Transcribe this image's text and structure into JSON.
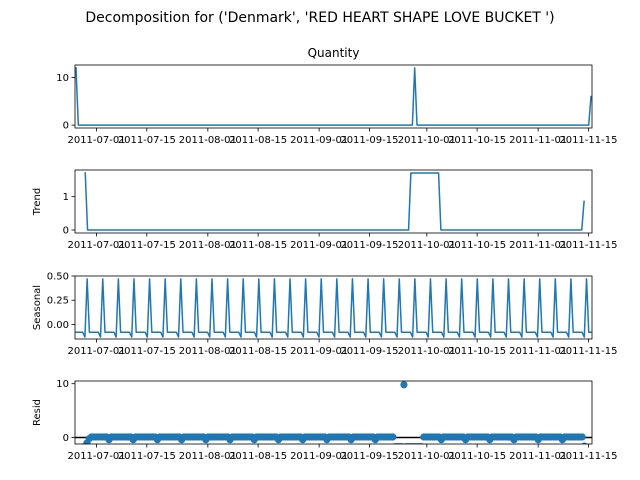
{
  "suptitle": "Decomposition for ('Denmark', 'RED HEART SHAPE LOVE BUCKET ')",
  "line_color": "#1f77b4",
  "chart_data": [
    {
      "type": "line",
      "title": "Quantity",
      "ylabel": "",
      "ylim": [
        -0.6,
        12.6
      ],
      "yticks": [
        0,
        10
      ],
      "xticks": [
        "2011-07-01",
        "2011-07-15",
        "2011-08-01",
        "2011-08-15",
        "2011-09-01",
        "2011-09-15",
        "2011-10-01",
        "2011-10-15",
        "2011-11-01",
        "2011-11-15"
      ],
      "values": [
        12,
        0,
        0,
        0,
        0,
        0,
        0,
        0,
        0,
        0,
        0,
        0,
        0,
        0,
        0,
        0,
        0,
        0,
        0,
        0,
        0,
        0,
        0,
        0,
        0,
        0,
        0,
        0,
        0,
        0,
        0,
        0,
        0,
        0,
        0,
        0,
        0,
        0,
        0,
        0,
        0,
        0,
        0,
        0,
        0,
        0,
        0,
        0,
        0,
        0,
        0,
        0,
        0,
        0,
        0,
        0,
        0,
        0,
        0,
        0,
        0,
        0,
        0,
        0,
        0,
        0,
        0,
        0,
        0,
        0,
        0,
        0,
        0,
        0,
        0,
        0,
        0,
        0,
        0,
        0,
        0,
        0,
        0,
        0,
        0,
        0,
        0,
        0,
        0,
        0,
        0,
        0,
        0,
        0,
        0,
        0,
        0,
        0,
        0,
        0,
        0,
        0,
        0,
        0,
        0,
        0,
        0,
        0,
        0,
        0,
        0,
        0,
        0,
        0,
        0,
        0,
        0,
        0,
        0,
        0,
        0,
        0,
        0,
        0,
        0,
        0,
        0,
        0,
        0,
        0,
        0,
        0,
        0,
        0,
        0,
        0,
        0,
        0,
        0,
        0,
        0,
        0,
        0,
        0,
        0,
        0,
        12,
        0,
        0,
        0,
        0,
        0,
        0,
        0,
        0,
        0,
        0,
        0,
        0,
        0,
        0,
        0,
        0,
        0,
        0,
        0,
        0,
        0,
        0,
        0,
        0,
        0,
        0,
        0,
        0,
        0,
        0,
        0,
        0,
        0,
        0,
        0,
        0,
        0,
        0,
        0,
        0,
        0,
        0,
        0,
        0,
        0,
        0,
        0,
        0,
        0,
        0,
        0,
        0,
        0,
        0,
        0,
        0,
        0,
        0,
        0,
        0,
        0,
        0,
        0,
        0,
        0,
        0,
        0,
        0,
        0,
        0,
        0,
        0,
        0,
        0,
        0,
        6
      ]
    },
    {
      "type": "line",
      "title": "",
      "ylabel": "Trend",
      "ylim": [
        -0.09,
        1.8
      ],
      "yticks": [
        0,
        1
      ],
      "xticks": [
        "2011-07-01",
        "2011-07-15",
        "2011-08-01",
        "2011-08-15",
        "2011-09-01",
        "2011-09-15",
        "2011-10-01",
        "2011-10-15",
        "2011-11-01",
        "2011-11-15"
      ],
      "values": [
        null,
        null,
        null,
        null,
        1.71,
        0,
        0,
        0,
        0,
        0,
        0,
        0,
        0,
        0,
        0,
        0,
        0,
        0,
        0,
        0,
        0,
        0,
        0,
        0,
        0,
        0,
        0,
        0,
        0,
        0,
        0,
        0,
        0,
        0,
        0,
        0,
        0,
        0,
        0,
        0,
        0,
        0,
        0,
        0,
        0,
        0,
        0,
        0,
        0,
        0,
        0,
        0,
        0,
        0,
        0,
        0,
        0,
        0,
        0,
        0,
        0,
        0,
        0,
        0,
        0,
        0,
        0,
        0,
        0,
        0,
        0,
        0,
        0,
        0,
        0,
        0,
        0,
        0,
        0,
        0,
        0,
        0,
        0,
        0,
        0,
        0,
        0,
        0,
        0,
        0,
        0,
        0,
        0,
        0,
        0,
        0,
        0,
        0,
        0,
        0,
        0,
        0,
        0,
        0,
        0,
        0,
        0,
        0,
        0,
        0,
        0,
        0,
        0,
        0,
        0,
        0,
        0,
        0,
        0,
        0,
        0,
        0,
        0,
        0,
        0,
        0,
        0,
        0,
        0,
        0,
        0,
        0,
        0,
        0,
        0,
        0,
        0,
        0,
        0,
        0,
        0,
        0,
        0,
        0,
        0,
        1.71,
        1.71,
        1.71,
        1.71,
        1.71,
        1.71,
        1.71,
        1.71,
        1.71,
        1.71,
        1.71,
        1.71,
        1.71,
        0,
        0,
        0,
        0,
        0,
        0,
        0,
        0,
        0,
        0,
        0,
        0,
        0,
        0,
        0,
        0,
        0,
        0,
        0,
        0,
        0,
        0,
        0,
        0,
        0,
        0,
        0,
        0,
        0,
        0,
        0,
        0,
        0,
        0,
        0,
        0,
        0,
        0,
        0,
        0,
        0,
        0,
        0,
        0,
        0,
        0,
        0,
        0,
        0,
        0,
        0,
        0,
        0,
        0,
        0,
        0,
        0,
        0,
        0,
        0,
        0,
        0,
        0.86,
        null,
        null,
        null
      ]
    },
    {
      "type": "line",
      "title": "",
      "ylabel": "Seasonal",
      "ylim": [
        -0.15,
        0.5
      ],
      "yticks": [
        -0.0,
        0.25,
        0.5
      ],
      "ytick_labels": [
        "0.00",
        "0.25",
        "0.50"
      ],
      "xticks": [
        "2011-07-01",
        "2011-07-15",
        "2011-08-01",
        "2011-08-15",
        "2011-09-01",
        "2011-09-15",
        "2011-10-01",
        "2011-10-15",
        "2011-11-01",
        "2011-11-15"
      ],
      "values": [
        -0.08,
        -0.08,
        -0.08,
        -0.08,
        -0.13,
        0.47,
        -0.08,
        -0.08,
        -0.08,
        -0.08,
        -0.08,
        -0.13,
        0.47,
        -0.08,
        -0.08,
        -0.08,
        -0.08,
        -0.08,
        -0.13,
        0.47,
        -0.08,
        -0.08,
        -0.08,
        -0.08,
        -0.08,
        -0.13,
        0.47,
        -0.08,
        -0.08,
        -0.08,
        -0.08,
        -0.08,
        -0.13,
        0.47,
        -0.08,
        -0.08,
        -0.08,
        -0.08,
        -0.08,
        -0.13,
        0.47,
        -0.08,
        -0.08,
        -0.08,
        -0.08,
        -0.08,
        -0.13,
        0.47,
        -0.08,
        -0.08,
        -0.08,
        -0.08,
        -0.08,
        -0.13,
        0.47,
        -0.08,
        -0.08,
        -0.08,
        -0.08,
        -0.08,
        -0.13,
        0.47,
        -0.08,
        -0.08,
        -0.08,
        -0.08,
        -0.08,
        -0.13,
        0.47,
        -0.08,
        -0.08,
        -0.08,
        -0.08,
        -0.08,
        -0.13,
        0.47,
        -0.08,
        -0.08,
        -0.08,
        -0.08,
        -0.08,
        -0.13,
        0.47,
        -0.08,
        -0.08,
        -0.08,
        -0.08,
        -0.08,
        -0.13,
        0.47,
        -0.08,
        -0.08,
        -0.08,
        -0.08,
        -0.08,
        -0.13,
        0.47,
        -0.08,
        -0.08,
        -0.08,
        -0.08,
        -0.08,
        -0.13,
        0.47,
        -0.08,
        -0.08,
        -0.08,
        -0.08,
        -0.08,
        -0.13,
        0.47,
        -0.08,
        -0.08,
        -0.08,
        -0.08,
        -0.08,
        -0.13,
        0.47,
        -0.08,
        -0.08,
        -0.08,
        -0.08,
        -0.08,
        -0.13,
        0.47,
        -0.08,
        -0.08,
        -0.08,
        -0.08,
        -0.08,
        -0.13,
        0.47,
        -0.08,
        -0.08,
        -0.08,
        -0.08,
        -0.08,
        -0.13,
        0.47,
        -0.08,
        -0.08,
        -0.08,
        -0.08,
        -0.08,
        -0.13,
        0.47,
        -0.08,
        -0.08,
        -0.08,
        -0.08,
        -0.08,
        -0.13,
        0.47,
        -0.08,
        -0.08,
        -0.08,
        -0.08,
        -0.08,
        -0.13,
        0.47,
        -0.08,
        -0.08,
        -0.08,
        -0.08,
        -0.08,
        -0.13,
        0.47,
        -0.08,
        -0.08,
        -0.08,
        -0.08,
        -0.08,
        -0.13,
        0.47,
        -0.08,
        -0.08,
        -0.08,
        -0.08,
        -0.08,
        -0.13,
        0.47,
        -0.08,
        -0.08,
        -0.08,
        -0.08,
        -0.08,
        -0.13,
        0.47,
        -0.08,
        -0.08,
        -0.08,
        -0.08,
        -0.08,
        -0.13,
        0.47,
        -0.08,
        -0.08,
        -0.08,
        -0.08,
        -0.08,
        -0.13,
        0.47,
        -0.08,
        -0.08,
        -0.08,
        -0.08,
        -0.08,
        -0.13,
        0.47,
        -0.08,
        -0.08,
        -0.08,
        -0.08,
        -0.08,
        -0.13,
        0.47,
        -0.08,
        -0.08,
        -0.08,
        -0.08,
        -0.08,
        -0.13,
        0.47,
        -0.08,
        -0.08,
        -0.08,
        -0.08,
        -0.08,
        -0.13,
        0.47,
        -0.08,
        -0.08
      ]
    },
    {
      "type": "scatter",
      "title": "",
      "ylabel": "Resid",
      "ylim": [
        -1.2,
        10.5
      ],
      "yticks": [
        0,
        10
      ],
      "baseline": 0,
      "xticks": [
        "2011-07-01",
        "2011-07-15",
        "2011-08-01",
        "2011-08-15",
        "2011-09-01",
        "2011-09-15",
        "2011-10-01",
        "2011-10-15",
        "2011-11-01",
        "2011-11-15"
      ],
      "values": [
        null,
        null,
        null,
        null,
        -1.6,
        -1.0,
        -0.2,
        0.1,
        0.1,
        0.1,
        0.1,
        0.1,
        0.1,
        0.1,
        0.1,
        -0.4,
        0.1,
        0.1,
        0.1,
        0.1,
        0.1,
        0.1,
        0.1,
        0.1,
        0.1,
        0.1,
        -0.4,
        0.1,
        0.1,
        0.1,
        0.1,
        0.1,
        0.1,
        0.1,
        0.1,
        0.1,
        0.1,
        -0.4,
        0.1,
        0.1,
        0.1,
        0.1,
        0.1,
        0.1,
        0.1,
        0.1,
        0.1,
        0.1,
        -0.4,
        0.1,
        0.1,
        0.1,
        0.1,
        0.1,
        0.1,
        0.1,
        0.1,
        0.1,
        0.1,
        -0.4,
        0.1,
        0.1,
        0.1,
        0.1,
        0.1,
        0.1,
        0.1,
        0.1,
        0.1,
        0.1,
        -0.4,
        0.1,
        0.1,
        0.1,
        0.1,
        0.1,
        0.1,
        0.1,
        0.1,
        0.1,
        0.1,
        -0.4,
        0.1,
        0.1,
        0.1,
        0.1,
        0.1,
        0.1,
        0.1,
        0.1,
        0.1,
        0.1,
        -0.4,
        0.1,
        0.1,
        0.1,
        0.1,
        0.1,
        0.1,
        0.1,
        0.1,
        0.1,
        0.1,
        -0.4,
        0.1,
        0.1,
        0.1,
        0.1,
        0.1,
        0.1,
        0.1,
        0.1,
        0.1,
        0.1,
        -0.4,
        0.1,
        0.1,
        0.1,
        0.1,
        0.1,
        0.1,
        0.1,
        0.1,
        0.1,
        0.1,
        -0.4,
        0.1,
        0.1,
        0.1,
        0.1,
        0.1,
        0.1,
        0.1,
        0.1,
        0.1,
        0.1,
        -0.4,
        0.1,
        0.1,
        0.1,
        0.1,
        0.1,
        0.1,
        0.1,
        0.1,
        -1.7,
        -1.7,
        -1.7,
        -1.7,
        9.8,
        -1.7,
        -1.7,
        -1.7,
        -1.7,
        -1.7,
        -1.7,
        -1.7,
        -1.7,
        0.1,
        0.1,
        0.1,
        0.1,
        0.1,
        0.1,
        0.1,
        0.1,
        -0.4,
        0.1,
        0.1,
        0.1,
        0.1,
        0.1,
        0.1,
        0.1,
        0.1,
        0.1,
        0.1,
        -0.4,
        0.1,
        0.1,
        0.1,
        0.1,
        0.1,
        0.1,
        0.1,
        0.1,
        0.1,
        0.1,
        -0.4,
        0.1,
        0.1,
        0.1,
        0.1,
        0.1,
        0.1,
        0.1,
        0.1,
        0.1,
        0.1,
        -0.4,
        0.1,
        0.1,
        0.1,
        0.1,
        0.1,
        0.1,
        0.1,
        0.1,
        0.1,
        0.1,
        -0.4,
        0.1,
        0.1,
        0.1,
        0.1,
        0.1,
        0.1,
        0.1,
        0.1,
        0.1,
        0.1,
        -0.4,
        0.1,
        0.1,
        0.1,
        0.1,
        0.1,
        0.1,
        0.1,
        0.1,
        0.1,
        -1.6,
        null,
        null,
        null
      ]
    }
  ]
}
